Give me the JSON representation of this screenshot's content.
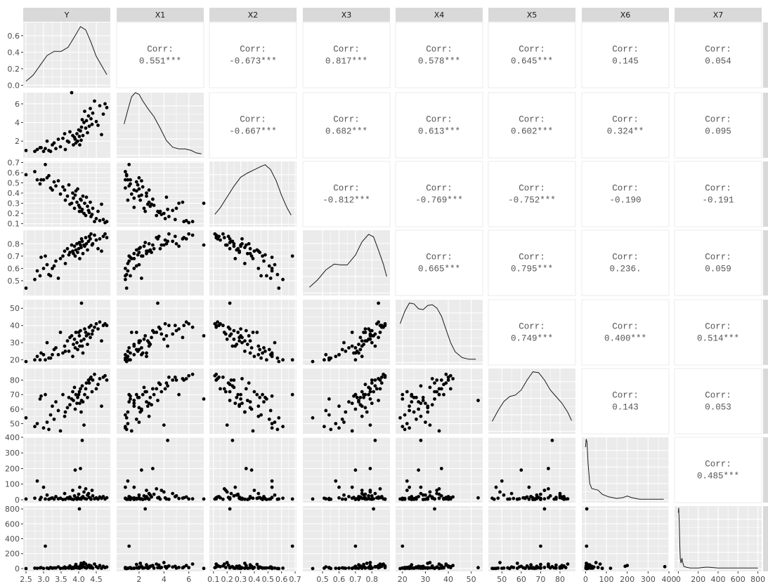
{
  "chart_data": {
    "type": "scatter",
    "variables": [
      "Y",
      "X1",
      "X2",
      "X3",
      "X4",
      "X5",
      "X6",
      "X7"
    ],
    "row_strip_labels": [
      "Y",
      "X1",
      "X2",
      "X3",
      "X4",
      "X5",
      "X6",
      "X7"
    ],
    "corr_label": "Corr:",
    "upper_panels": [
      {
        "row": 0,
        "col": 1,
        "value": "0.551***"
      },
      {
        "row": 0,
        "col": 2,
        "value": "-0.673***"
      },
      {
        "row": 0,
        "col": 3,
        "value": "0.817***"
      },
      {
        "row": 0,
        "col": 4,
        "value": "0.578***"
      },
      {
        "row": 0,
        "col": 5,
        "value": "0.645***"
      },
      {
        "row": 0,
        "col": 6,
        "value": "0.145"
      },
      {
        "row": 0,
        "col": 7,
        "value": "0.054"
      },
      {
        "row": 1,
        "col": 2,
        "value": "-0.667***"
      },
      {
        "row": 1,
        "col": 3,
        "value": "0.682***"
      },
      {
        "row": 1,
        "col": 4,
        "value": "0.613***"
      },
      {
        "row": 1,
        "col": 5,
        "value": "0.602***"
      },
      {
        "row": 1,
        "col": 6,
        "value": "0.324**"
      },
      {
        "row": 1,
        "col": 7,
        "value": "0.095"
      },
      {
        "row": 2,
        "col": 3,
        "value": "-0.812***"
      },
      {
        "row": 2,
        "col": 4,
        "value": "-0.769***"
      },
      {
        "row": 2,
        "col": 5,
        "value": "-0.752***"
      },
      {
        "row": 2,
        "col": 6,
        "value": "-0.190"
      },
      {
        "row": 2,
        "col": 7,
        "value": "-0.191"
      },
      {
        "row": 3,
        "col": 4,
        "value": "0.665***"
      },
      {
        "row": 3,
        "col": 5,
        "value": "0.795***"
      },
      {
        "row": 3,
        "col": 6,
        "value": "0.236."
      },
      {
        "row": 3,
        "col": 7,
        "value": "0.059"
      },
      {
        "row": 4,
        "col": 5,
        "value": "0.749***"
      },
      {
        "row": 4,
        "col": 6,
        "value": "0.400***"
      },
      {
        "row": 4,
        "col": 7,
        "value": "0.514***"
      },
      {
        "row": 5,
        "col": 6,
        "value": "0.143"
      },
      {
        "row": 5,
        "col": 7,
        "value": "0.053"
      },
      {
        "row": 6,
        "col": 7,
        "value": "0.485***"
      }
    ],
    "axes": {
      "Y": {
        "lim": [
          2.42,
          4.9
        ],
        "ticks": [
          2.5,
          3.0,
          3.5,
          4.0,
          4.5
        ],
        "labels": [
          "2.5",
          "3.0",
          "3.5",
          "4.0",
          "4.5"
        ]
      },
      "X1": {
        "lim": [
          0.2,
          7.2
        ],
        "ticks": [
          2,
          4,
          6
        ],
        "labels": [
          "2",
          "4",
          "6"
        ]
      },
      "X2": {
        "lim": [
          0.07,
          0.71
        ],
        "ticks": [
          0.1,
          0.2,
          0.3,
          0.4,
          0.5,
          0.6,
          0.7
        ],
        "labels": [
          "0.1",
          "0.2",
          "0.3",
          "0.4",
          "0.5",
          "0.6",
          "0.7"
        ]
      },
      "X3": {
        "lim": [
          0.38,
          0.91
        ],
        "ticks": [
          0.5,
          0.6,
          0.7,
          0.8
        ],
        "labels": [
          "0.5",
          "0.6",
          "0.7",
          "0.8"
        ]
      },
      "X4": {
        "lim": [
          17,
          55
        ],
        "ticks": [
          20,
          30,
          40,
          50
        ],
        "labels": [
          "20",
          "30",
          "40",
          "50"
        ]
      },
      "X5": {
        "lim": [
          43,
          88
        ],
        "ticks": [
          50,
          60,
          70,
          80
        ],
        "labels": [
          "50",
          "60",
          "70",
          "80"
        ]
      },
      "X6": {
        "lim": [
          -18,
          400
        ],
        "ticks": [
          0,
          100,
          200,
          300,
          400
        ],
        "labels": [
          "0",
          "100",
          "200",
          "300",
          "400"
        ]
      },
      "X7": {
        "lim": [
          -38,
          838
        ],
        "ticks": [
          0,
          200,
          400,
          600,
          800
        ],
        "labels": [
          "0",
          "200",
          "400",
          "600",
          "800"
        ]
      }
    },
    "density_y_axis": {
      "lim": [
        -0.03,
        0.76
      ],
      "ticks": [
        0.0,
        0.2,
        0.4,
        0.6
      ],
      "labels": [
        "0.0",
        "0.2",
        "0.4",
        "0.6"
      ]
    },
    "density_curves": {
      "Y": [
        [
          2.5,
          0.05
        ],
        [
          2.7,
          0.12
        ],
        [
          2.9,
          0.24
        ],
        [
          3.1,
          0.36
        ],
        [
          3.3,
          0.41
        ],
        [
          3.5,
          0.41
        ],
        [
          3.7,
          0.46
        ],
        [
          3.9,
          0.6
        ],
        [
          4.05,
          0.71
        ],
        [
          4.2,
          0.67
        ],
        [
          4.35,
          0.52
        ],
        [
          4.5,
          0.35
        ],
        [
          4.65,
          0.24
        ],
        [
          4.8,
          0.13
        ]
      ],
      "X1": [
        [
          0.8,
          0.38
        ],
        [
          1.1,
          0.55
        ],
        [
          1.4,
          0.71
        ],
        [
          1.7,
          0.76
        ],
        [
          2.0,
          0.74
        ],
        [
          2.3,
          0.66
        ],
        [
          2.7,
          0.57
        ],
        [
          3.2,
          0.47
        ],
        [
          3.7,
          0.33
        ],
        [
          4.2,
          0.18
        ],
        [
          4.7,
          0.1
        ],
        [
          5.2,
          0.08
        ],
        [
          5.7,
          0.08
        ],
        [
          6.2,
          0.06
        ],
        [
          6.6,
          0.03
        ],
        [
          7.0,
          0.02
        ]
      ],
      "X2": [
        [
          0.11,
          0.12
        ],
        [
          0.15,
          0.2
        ],
        [
          0.2,
          0.33
        ],
        [
          0.25,
          0.46
        ],
        [
          0.3,
          0.57
        ],
        [
          0.35,
          0.62
        ],
        [
          0.4,
          0.66
        ],
        [
          0.45,
          0.7
        ],
        [
          0.48,
          0.72
        ],
        [
          0.52,
          0.66
        ],
        [
          0.56,
          0.53
        ],
        [
          0.6,
          0.35
        ],
        [
          0.64,
          0.2
        ],
        [
          0.67,
          0.11
        ]
      ],
      "X3": [
        [
          0.42,
          0.07
        ],
        [
          0.47,
          0.16
        ],
        [
          0.52,
          0.28
        ],
        [
          0.57,
          0.35
        ],
        [
          0.61,
          0.34
        ],
        [
          0.65,
          0.34
        ],
        [
          0.7,
          0.46
        ],
        [
          0.74,
          0.62
        ],
        [
          0.78,
          0.71
        ],
        [
          0.81,
          0.68
        ],
        [
          0.84,
          0.52
        ],
        [
          0.87,
          0.35
        ],
        [
          0.89,
          0.2
        ]
      ],
      "X4": [
        [
          19,
          0.47
        ],
        [
          21,
          0.62
        ],
        [
          23,
          0.72
        ],
        [
          25,
          0.71
        ],
        [
          27,
          0.65
        ],
        [
          29,
          0.64
        ],
        [
          31,
          0.69
        ],
        [
          33,
          0.7
        ],
        [
          35,
          0.66
        ],
        [
          37,
          0.56
        ],
        [
          39,
          0.4
        ],
        [
          41,
          0.24
        ],
        [
          43,
          0.13
        ],
        [
          46,
          0.06
        ],
        [
          49,
          0.04
        ],
        [
          52,
          0.04
        ]
      ],
      "X5": [
        [
          45,
          0.12
        ],
        [
          48,
          0.25
        ],
        [
          51,
          0.36
        ],
        [
          54,
          0.42
        ],
        [
          57,
          0.44
        ],
        [
          60,
          0.5
        ],
        [
          63,
          0.62
        ],
        [
          66,
          0.72
        ],
        [
          69,
          0.71
        ],
        [
          72,
          0.62
        ],
        [
          75,
          0.5
        ],
        [
          78,
          0.42
        ],
        [
          81,
          0.34
        ],
        [
          84,
          0.23
        ],
        [
          86,
          0.13
        ]
      ],
      "X6": [
        [
          0,
          0.64
        ],
        [
          3,
          0.74
        ],
        [
          7,
          0.7
        ],
        [
          12,
          0.45
        ],
        [
          20,
          0.2
        ],
        [
          30,
          0.14
        ],
        [
          45,
          0.13
        ],
        [
          60,
          0.12
        ],
        [
          80,
          0.07
        ],
        [
          110,
          0.04
        ],
        [
          150,
          0.02
        ],
        [
          180,
          0.03
        ],
        [
          200,
          0.05
        ],
        [
          220,
          0.03
        ],
        [
          260,
          0.01
        ],
        [
          320,
          0.01
        ],
        [
          375,
          0.01
        ]
      ],
      "X7": [
        [
          0,
          0.68
        ],
        [
          4,
          0.74
        ],
        [
          9,
          0.55
        ],
        [
          14,
          0.3
        ],
        [
          20,
          0.12
        ],
        [
          28,
          0.07
        ],
        [
          36,
          0.13
        ],
        [
          44,
          0.08
        ],
        [
          55,
          0.03
        ],
        [
          80,
          0.02
        ],
        [
          120,
          0.01
        ],
        [
          200,
          0.01
        ],
        [
          270,
          0.02
        ],
        [
          310,
          0.02
        ],
        [
          400,
          0.01
        ],
        [
          500,
          0.01
        ],
        [
          700,
          0.01
        ],
        [
          800,
          0.01
        ]
      ]
    },
    "observations": [
      [
        2.5,
        1.0,
        0.58,
        0.44,
        19,
        54,
        5,
        0
      ],
      [
        2.75,
        0.9,
        0.61,
        0.51,
        20,
        48,
        10,
        5
      ],
      [
        2.82,
        1.1,
        0.53,
        0.58,
        22,
        50,
        120,
        3
      ],
      [
        2.9,
        1.3,
        0.49,
        0.54,
        20,
        67,
        2,
        8
      ],
      [
        2.93,
        1.3,
        0.53,
        0.69,
        24,
        69,
        15,
        12
      ],
      [
        3.0,
        0.9,
        0.53,
        0.6,
        23,
        47,
        80,
        2
      ],
      [
        3.05,
        1.2,
        0.68,
        0.7,
        20,
        70,
        5,
        300
      ],
      [
        3.1,
        2.0,
        0.55,
        0.63,
        30,
        51,
        30,
        6
      ],
      [
        3.15,
        1.0,
        0.57,
        0.55,
        21,
        46,
        3,
        1
      ],
      [
        3.2,
        0.9,
        0.45,
        0.54,
        21,
        56,
        8,
        14
      ],
      [
        3.25,
        1.6,
        0.43,
        0.6,
        23,
        62,
        12,
        4
      ],
      [
        3.3,
        1.8,
        0.51,
        0.62,
        26,
        53,
        4,
        9
      ],
      [
        3.35,
        1.2,
        0.47,
        0.66,
        27,
        65,
        20,
        7
      ],
      [
        3.42,
        2.2,
        0.52,
        0.52,
        23,
        59,
        6,
        22
      ],
      [
        3.48,
        1.4,
        0.39,
        0.68,
        36,
        45,
        10,
        2
      ],
      [
        3.55,
        2.3,
        0.46,
        0.7,
        24,
        70,
        2,
        5
      ],
      [
        3.6,
        2.8,
        0.43,
        0.74,
        28,
        55,
        40,
        20
      ],
      [
        3.62,
        1.1,
        0.33,
        0.64,
        25,
        58,
        3,
        3
      ],
      [
        3.68,
        2.0,
        0.37,
        0.76,
        31,
        61,
        12,
        11
      ],
      [
        3.72,
        1.9,
        0.48,
        0.71,
        25,
        68,
        7,
        6
      ],
      [
        3.75,
        3.0,
        0.29,
        0.73,
        33,
        63,
        18,
        35
      ],
      [
        3.8,
        7.2,
        0.3,
        0.79,
        34,
        67,
        5,
        2
      ],
      [
        3.83,
        2.6,
        0.4,
        0.74,
        22,
        72,
        60,
        15
      ],
      [
        3.85,
        1.6,
        0.35,
        0.72,
        29,
        66,
        2,
        4
      ],
      [
        3.88,
        2.4,
        0.25,
        0.78,
        32,
        75,
        25,
        8
      ],
      [
        3.9,
        2.2,
        0.38,
        0.7,
        27,
        60,
        190,
        30
      ],
      [
        3.92,
        1.8,
        0.42,
        0.75,
        36,
        70,
        9,
        55
      ],
      [
        3.95,
        2.8,
        0.31,
        0.8,
        30,
        64,
        3,
        10
      ],
      [
        3.97,
        2.0,
        0.44,
        0.73,
        26,
        68,
        14,
        20
      ],
      [
        4.0,
        3.2,
        0.28,
        0.76,
        36,
        70,
        35,
        5
      ],
      [
        4.02,
        2.5,
        0.22,
        0.81,
        34,
        72,
        6,
        800
      ],
      [
        4.03,
        1.6,
        0.26,
        0.68,
        28,
        64,
        80,
        3
      ],
      [
        4.05,
        3.1,
        0.34,
        0.79,
        37,
        74,
        200,
        40
      ],
      [
        4.07,
        2.1,
        0.33,
        0.77,
        31,
        58,
        4,
        70
      ],
      [
        4.08,
        3.5,
        0.22,
        0.84,
        53,
        66,
        12,
        12
      ],
      [
        4.1,
        4.3,
        0.24,
        0.82,
        28,
        76,
        380,
        25
      ],
      [
        4.12,
        2.6,
        0.37,
        0.72,
        24,
        65,
        20,
        50
      ],
      [
        4.15,
        4.0,
        0.2,
        0.79,
        32,
        49,
        50,
        80
      ],
      [
        4.17,
        5.2,
        0.3,
        0.78,
        38,
        70,
        8,
        15
      ],
      [
        4.2,
        3.4,
        0.18,
        0.85,
        36,
        74,
        70,
        60
      ],
      [
        4.22,
        4.2,
        0.36,
        0.8,
        34,
        78,
        5,
        6
      ],
      [
        4.25,
        2.9,
        0.27,
        0.75,
        29,
        68,
        30,
        30
      ],
      [
        4.28,
        4.7,
        0.23,
        0.82,
        35,
        80,
        40,
        20
      ],
      [
        4.3,
        3.6,
        0.21,
        0.86,
        39,
        78,
        15,
        45
      ],
      [
        4.33,
        5.5,
        0.31,
        0.84,
        33,
        81,
        10,
        10
      ],
      [
        4.35,
        4.4,
        0.17,
        0.88,
        40,
        82,
        3,
        35
      ],
      [
        4.38,
        3.8,
        0.19,
        0.79,
        35,
        72,
        60,
        15
      ],
      [
        4.4,
        5.0,
        0.25,
        0.8,
        37,
        80,
        25,
        5
      ],
      [
        4.45,
        6.3,
        0.12,
        0.87,
        39,
        84,
        6,
        60
      ],
      [
        4.5,
        4.1,
        0.15,
        0.83,
        41,
        74,
        12,
        25
      ],
      [
        4.55,
        3.7,
        0.22,
        0.76,
        38,
        77,
        4,
        8
      ],
      [
        4.6,
        5.8,
        0.13,
        0.84,
        42,
        81,
        18,
        40
      ],
      [
        4.65,
        2.7,
        0.29,
        0.74,
        31,
        62,
        9,
        3
      ],
      [
        4.7,
        4.9,
        0.14,
        0.86,
        40,
        82,
        20,
        30
      ],
      [
        4.75,
        6.0,
        0.11,
        0.88,
        41,
        83,
        5,
        12
      ],
      [
        4.8,
        5.6,
        0.12,
        0.85,
        40,
        80,
        13,
        20
      ]
    ]
  }
}
